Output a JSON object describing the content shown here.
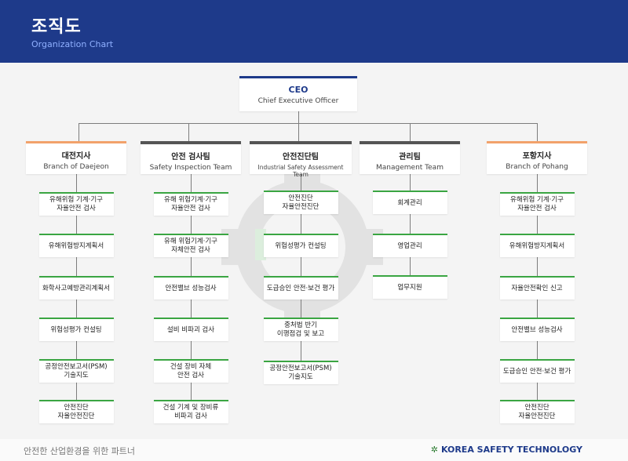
{
  "header": {
    "title": "조직도",
    "subtitle": "Organization Chart"
  },
  "ceo": {
    "title": "CEO",
    "subtitle": "Chief Executive Officer"
  },
  "departments": [
    {
      "name": "대전지사",
      "english": "Branch of Daejeon",
      "items": [
        "유해위험 기계·기구\n자율안전 검사",
        "유해위험방지계획서",
        "화학사고예방관리계획서",
        "위험성평가 컨설팅",
        "공정안전보고서(PSM)\n기술지도",
        "안전진단\n자율안전진단"
      ]
    },
    {
      "name": "안전 검사팀",
      "english": "Safety Inspection Team",
      "items": [
        "유해 위험기계·기구\n자율안전 검사",
        "유해 위험기계·기구\n자체안전 검사",
        "안전밸브 성능검사",
        "설비 비파괴 검사",
        "건설 장비 자체\n안전 검사",
        "건설 기계 및 장비류\n비파괴 검사"
      ]
    },
    {
      "name": "안전진단팀",
      "english": "Industrial Safety Assessment Team",
      "items": [
        "안전진단\n자율안전진단",
        "위험성평가 컨설팅",
        "도급승인 안전·보건 평가",
        "중처법 반기\n이행점검 및 보고",
        "공정안전보고서(PSM)\n기술지도"
      ]
    },
    {
      "name": "관리팀",
      "english": "Management Team",
      "items": [
        "회계관리",
        "영업관리",
        "업무지원"
      ]
    },
    {
      "name": "포항지사",
      "english": "Branch of Pohang",
      "items": [
        "유해위험 기계·기구\n자율안전 검사",
        "유해위험방지계획서",
        "자율안전확인 신고",
        "안전밸브 성능검사",
        "도급승인 안전·보건 평가",
        "안전진단\n자율안전진단"
      ]
    }
  ],
  "footer": {
    "tagline": "안전한 산업환경을 위한 파트너",
    "brand": "KOREA SAFETY TECHNOLOGY"
  },
  "colors": {
    "header": "#1e3a8a",
    "branch_accent": "#f2a26b",
    "team_accent": "#555555",
    "item_accent": "#3aa542",
    "connector": "#7d7d7d"
  }
}
